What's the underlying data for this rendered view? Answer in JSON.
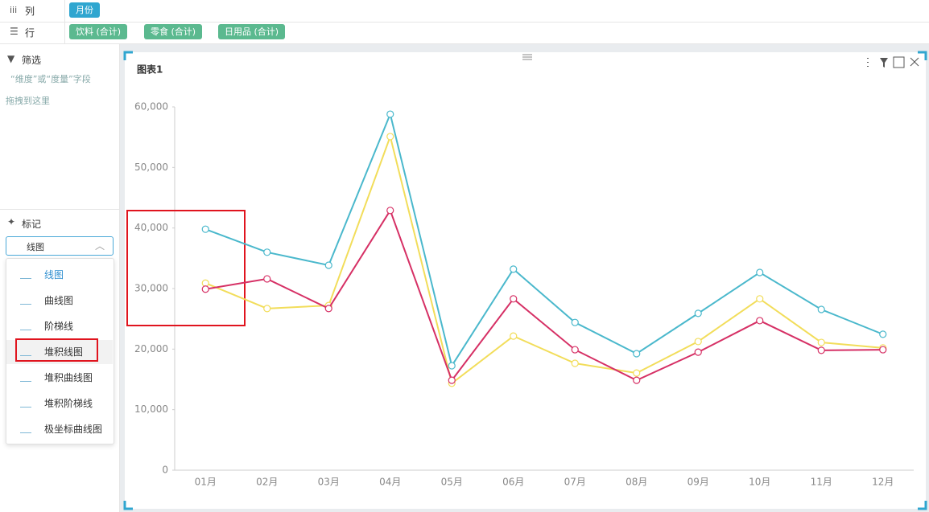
{
  "ui": {
    "columns_label": "列",
    "columns_field": "月份",
    "rows_label": "行",
    "rows_fields": [
      "饮料 (合计)",
      "零食 (合计)",
      "日用品 (合计)"
    ],
    "filter_title": "筛选",
    "filter_hint": "“维度”或“度量”字段",
    "filter_drop": "拖拽到这里",
    "marks_title": "标记",
    "marks_selected": "线图",
    "marks_options": [
      "线图",
      "曲线图",
      "阶梯线",
      "堆积线图",
      "堆积曲线图",
      "堆积阶梯线",
      "极坐标曲线图"
    ]
  },
  "chart_data": {
    "type": "line",
    "title": "图表1",
    "categories": [
      "01月",
      "02月",
      "03月",
      "04月",
      "05月",
      "06月",
      "07月",
      "08月",
      "09月",
      "10月",
      "11月",
      "12月"
    ],
    "series": [
      {
        "color": "#4ab8cc",
        "values": [
          39800,
          36000,
          33850,
          58800,
          17250,
          33200,
          24400,
          19250,
          25900,
          32650,
          26550,
          22450
        ]
      },
      {
        "color": "#f2dd5a",
        "values": [
          30900,
          26700,
          27200,
          55100,
          14350,
          22150,
          17650,
          16050,
          21250,
          28300,
          21100,
          20200
        ]
      },
      {
        "color": "#d63065",
        "values": [
          29900,
          31600,
          26700,
          42900,
          14850,
          28300,
          19900,
          14850,
          19500,
          24700,
          19800,
          19900
        ]
      }
    ],
    "ylim": [
      0,
      60000
    ],
    "yticks": [
      0,
      {
        "value": 10000,
        "label": "10,000"
      },
      {
        "value": 20000,
        "label": "20,000"
      },
      {
        "value": 30000,
        "label": "30,000"
      },
      {
        "value": 40000,
        "label": "40,000"
      },
      {
        "value": 50000,
        "label": "50,000"
      },
      {
        "value": 60000,
        "label": "60,000"
      }
    ],
    "grid": false
  }
}
